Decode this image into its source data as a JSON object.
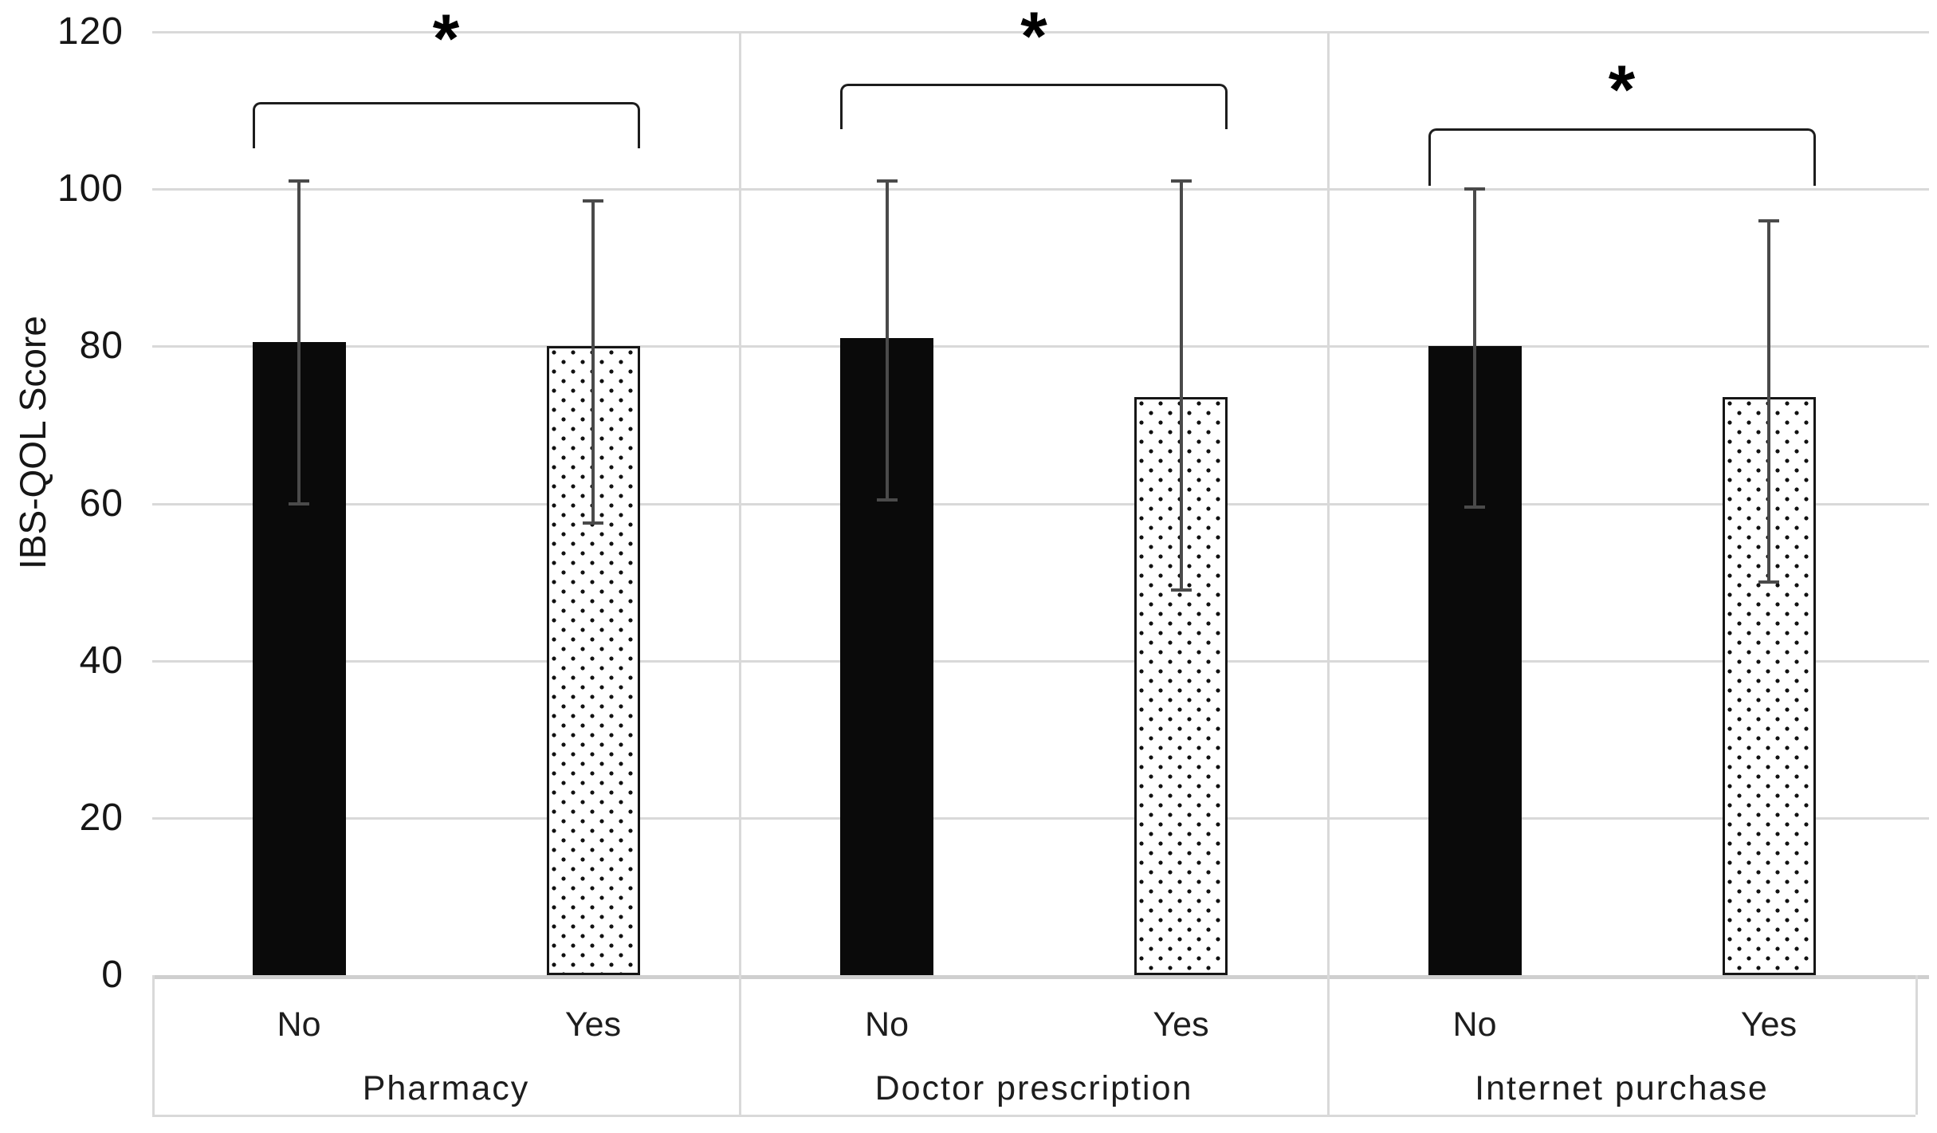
{
  "chart_data": {
    "type": "bar",
    "title": "",
    "xlabel": "",
    "ylabel": "IBS-QOL Score",
    "ylim": [
      0,
      120
    ],
    "yticks": [
      0,
      20,
      40,
      60,
      80,
      100,
      120
    ],
    "grid": "horizontal-light",
    "legend_position": "none",
    "categories_per_group": [
      "No",
      "Yes"
    ],
    "groups": [
      {
        "label": "Pharmacy",
        "significance": "*",
        "bars": [
          {
            "label": "No",
            "mean": 80.5,
            "err_low": 60,
            "err_high": 101,
            "fill": "solid-black"
          },
          {
            "label": "Yes",
            "mean": 80,
            "err_low": 57.5,
            "err_high": 98.5,
            "fill": "dotted-white"
          }
        ],
        "bracket": {
          "y": 128,
          "drop": 58,
          "asterisk_top": 6
        }
      },
      {
        "label": "Doctor prescription",
        "significance": "*",
        "bars": [
          {
            "label": "No",
            "mean": 81,
            "err_low": 60.5,
            "err_high": 101,
            "fill": "solid-black"
          },
          {
            "label": "Yes",
            "mean": 73.5,
            "err_low": 49,
            "err_high": 101,
            "fill": "dotted-white"
          }
        ],
        "bracket": {
          "y": 105,
          "drop": 57,
          "asterisk_top": 3
        }
      },
      {
        "label": "Internet purchase",
        "significance": "*",
        "bars": [
          {
            "label": "No",
            "mean": 80,
            "err_low": 59.5,
            "err_high": 100,
            "fill": "solid-black"
          },
          {
            "label": "Yes",
            "mean": 73.5,
            "err_low": 50,
            "err_high": 96,
            "fill": "dotted-white"
          }
        ],
        "bracket": {
          "y": 161,
          "drop": 72,
          "asterisk_top": 70
        }
      }
    ],
    "colors": {
      "bar_no_fill": "#0a0a0a",
      "bar_yes_fill": "#ffffff",
      "bar_yes_dot": "#111111",
      "bar_yes_border": "#161616",
      "error_bar": "#4a4a4a",
      "gridline": "#d9d9d9",
      "axis_line": "#cfcfcf",
      "bracket": "#1d1d1d",
      "text": "#161616"
    }
  }
}
